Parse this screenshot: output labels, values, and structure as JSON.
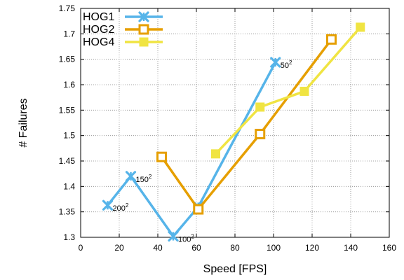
{
  "chart_data": {
    "type": "line",
    "title": "",
    "xlabel": "Speed [FPS]",
    "ylabel": "# Failures",
    "xlim": [
      0,
      160
    ],
    "ylim": [
      1.3,
      1.75
    ],
    "x_ticks": [
      0,
      20,
      40,
      60,
      80,
      100,
      120,
      140,
      160
    ],
    "y_ticks": [
      1.3,
      1.35,
      1.4,
      1.45,
      1.5,
      1.55,
      1.6,
      1.65,
      1.7,
      1.75
    ],
    "grid": true,
    "legend_position": "top-left",
    "series": [
      {
        "name": "HOG1",
        "color": "#56b4e9",
        "marker": "x",
        "x": [
          14,
          26,
          48,
          61,
          101
        ],
        "y": [
          1.363,
          1.42,
          1.302,
          1.36,
          1.644
        ]
      },
      {
        "name": "HOG2",
        "color": "#e69f00",
        "marker": "square-open",
        "x": [
          42,
          61,
          93,
          130
        ],
        "y": [
          1.458,
          1.355,
          1.503,
          1.689
        ]
      },
      {
        "name": "HOG4",
        "color": "#f0e442",
        "marker": "square-filled",
        "x": [
          70,
          93,
          116,
          145
        ],
        "y": [
          1.464,
          1.556,
          1.587,
          1.713
        ]
      }
    ],
    "annotations": [
      {
        "base": "200",
        "exp": "2",
        "x": 14,
        "y": 1.363
      },
      {
        "base": "150",
        "exp": "2",
        "x": 26,
        "y": 1.42
      },
      {
        "base": "100",
        "exp": "2",
        "x": 48,
        "y": 1.302
      },
      {
        "base": "50",
        "exp": "2",
        "x": 101,
        "y": 1.644
      }
    ]
  }
}
